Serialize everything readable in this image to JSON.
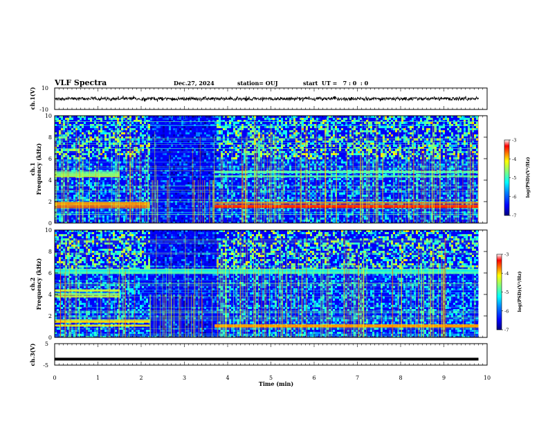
{
  "header": {
    "title": "VLF Spectra",
    "date": "Dec.27, 2024",
    "station": "station= OUJ",
    "start_time": "start  UT =   7 : 0  : 0"
  },
  "chart_data": [
    {
      "type": "line",
      "panel": "ch1-waveform",
      "ylabel": "ch.1(V)",
      "ylim": [
        -10,
        10
      ],
      "yticks": [
        "10",
        "-10"
      ],
      "xlim": [
        0,
        10
      ],
      "description_values": {
        "baseline": 0,
        "typical_amplitude": 2,
        "max_amplitude": 3
      },
      "series_color": "#000000"
    },
    {
      "type": "heatmap",
      "panel": "ch1-spectrogram",
      "ylabel_line1": "ch.1",
      "ylabel_line2": "Frequency  (kHz)",
      "ylim": [
        0,
        10
      ],
      "yticks": [
        "0",
        "2",
        "4",
        "6",
        "8",
        "10"
      ],
      "xlim": [
        0,
        10
      ],
      "bands_khz": [
        {
          "freq": 4.5,
          "from": 0.0,
          "to": 1.5,
          "level": -4.5
        },
        {
          "freq": 4.5,
          "from": 3.7,
          "to": 9.8,
          "level": -4.8
        },
        {
          "freq": 1.6,
          "from": 0.0,
          "to": 2.2,
          "level": -3.8
        },
        {
          "freq": 1.6,
          "from": 3.7,
          "to": 9.8,
          "level": -3.5
        }
      ],
      "colorbar": {
        "label": "log(PSD)(V²/Hz)",
        "min": -7,
        "max": -3,
        "ticks": [
          "-3",
          "-4",
          "-5",
          "-6",
          "-7"
        ]
      }
    },
    {
      "type": "heatmap",
      "panel": "ch2-spectrogram",
      "ylabel_line1": "ch.2",
      "ylabel_line2": "Frequency  (kHz)",
      "ylim": [
        0,
        10
      ],
      "yticks": [
        "0",
        "2",
        "4",
        "6",
        "8",
        "10"
      ],
      "xlim": [
        0,
        10
      ],
      "bands_khz": [
        {
          "freq": 6.3,
          "from": 0.0,
          "to": 9.8,
          "level": -5.0
        },
        {
          "freq": 4.1,
          "from": 0.0,
          "to": 1.5,
          "level": -4.3
        },
        {
          "freq": 1.3,
          "from": 0.0,
          "to": 2.2,
          "level": -4.2
        },
        {
          "freq": 1.3,
          "from": 3.7,
          "to": 9.8,
          "level": -4.0
        }
      ],
      "colorbar": {
        "label": "log(PSD)(V²/Hz)",
        "min": -7,
        "max": -3,
        "ticks": [
          "-3",
          "-4",
          "-5",
          "-6",
          "-7"
        ]
      }
    },
    {
      "type": "line",
      "panel": "ch3-waveform",
      "ylabel": "ch.3(V)",
      "ylim": [
        -5,
        5
      ],
      "yticks": [
        "5",
        "-5"
      ],
      "xlim": [
        0,
        10
      ],
      "x": [
        0,
        9.8
      ],
      "y": [
        -2.2,
        -2.2
      ],
      "series_color": "#000000"
    }
  ],
  "xaxis": {
    "label": "Time  (min)",
    "ticks": [
      "0",
      "1",
      "2",
      "3",
      "4",
      "5",
      "6",
      "7",
      "8",
      "9",
      "10"
    ]
  },
  "colors": {
    "colormap": [
      "#00007f",
      "#0000ff",
      "#007fff",
      "#00ffff",
      "#7fff7f",
      "#ffff00",
      "#ff7f00",
      "#ff0000",
      "#ffffff"
    ],
    "background": "#ffffff",
    "axis": "#000000"
  }
}
